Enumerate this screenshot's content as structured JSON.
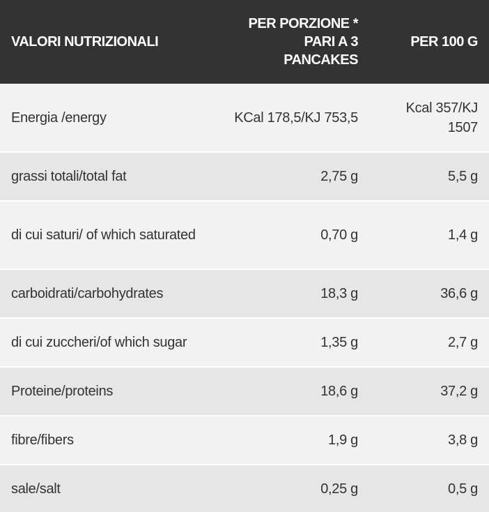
{
  "header": {
    "label": "VALORI NUTRIZIONALI",
    "per_portion": "PER PORZIONE * PARI A 3 PANCAKES",
    "per_100g": "PER 100 G"
  },
  "rows": [
    {
      "label": "Energia /energy",
      "per_portion": "KCal 178,5/KJ 753,5",
      "per_100g": "Kcal 357/KJ 1507"
    },
    {
      "label": "grassi totali/total fat",
      "per_portion": "2,75 g",
      "per_100g": "5,5 g"
    },
    {
      "label": "di cui saturi/ of which saturated",
      "per_portion": "0,70 g",
      "per_100g": "1,4 g"
    },
    {
      "label": "carboidrati/carbohydrates",
      "per_portion": "18,3 g",
      "per_100g": "36,6 g"
    },
    {
      "label": "di cui zuccheri/of which sugar",
      "per_portion": "1,35 g",
      "per_100g": "2,7 g"
    },
    {
      "label": "Proteine/proteins",
      "per_portion": "18,6 g",
      "per_100g": "37,2 g"
    },
    {
      "label": "fibre/fibers",
      "per_portion": "1,9 g",
      "per_100g": "3,8 g"
    },
    {
      "label": "sale/salt",
      "per_portion": "0,25 g",
      "per_100g": "0,5 g"
    }
  ]
}
